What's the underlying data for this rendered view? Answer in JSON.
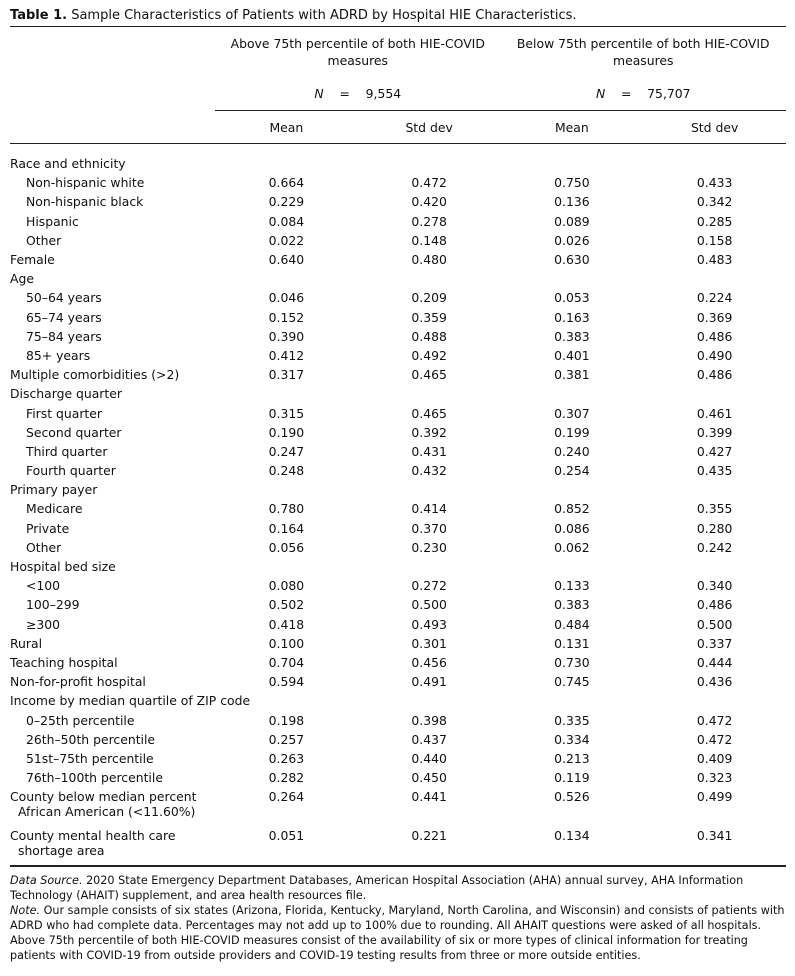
{
  "title": {
    "label": "Table 1.",
    "text": "Sample Characteristics of Patients with ADRD by Hospital HIE Characteristics."
  },
  "groups": [
    {
      "name": "Above 75th percentile of both HIE-COVID measures",
      "n_label": "N",
      "n_eq": "=",
      "n_value": "9,554"
    },
    {
      "name": "Below 75th percentile of both HIE-COVID measures",
      "n_label": "N",
      "n_eq": "=",
      "n_value": "75,707"
    }
  ],
  "columns": [
    "Mean",
    "Std dev",
    "Mean",
    "Std dev"
  ],
  "rows": [
    {
      "label": "Race and ethnicity",
      "indent": false,
      "values": [
        "",
        "",
        "",
        ""
      ]
    },
    {
      "label": "Non-hispanic white",
      "indent": true,
      "values": [
        "0.664",
        "0.472",
        "0.750",
        "0.433"
      ]
    },
    {
      "label": "Non-hispanic black",
      "indent": true,
      "values": [
        "0.229",
        "0.420",
        "0.136",
        "0.342"
      ]
    },
    {
      "label": "Hispanic",
      "indent": true,
      "values": [
        "0.084",
        "0.278",
        "0.089",
        "0.285"
      ]
    },
    {
      "label": "Other",
      "indent": true,
      "values": [
        "0.022",
        "0.148",
        "0.026",
        "0.158"
      ]
    },
    {
      "label": "Female",
      "indent": false,
      "values": [
        "0.640",
        "0.480",
        "0.630",
        "0.483"
      ]
    },
    {
      "label": "Age",
      "indent": false,
      "values": [
        "",
        "",
        "",
        ""
      ]
    },
    {
      "label": "50–64 years",
      "indent": true,
      "values": [
        "0.046",
        "0.209",
        "0.053",
        "0.224"
      ]
    },
    {
      "label": "65–74 years",
      "indent": true,
      "values": [
        "0.152",
        "0.359",
        "0.163",
        "0.369"
      ]
    },
    {
      "label": "75–84 years",
      "indent": true,
      "values": [
        "0.390",
        "0.488",
        "0.383",
        "0.486"
      ]
    },
    {
      "label": "85+ years",
      "indent": true,
      "values": [
        "0.412",
        "0.492",
        "0.401",
        "0.490"
      ]
    },
    {
      "label": "Multiple comorbidities (>2)",
      "indent": false,
      "values": [
        "0.317",
        "0.465",
        "0.381",
        "0.486"
      ]
    },
    {
      "label": "Discharge quarter",
      "indent": false,
      "values": [
        "",
        "",
        "",
        ""
      ]
    },
    {
      "label": "First quarter",
      "indent": true,
      "values": [
        "0.315",
        "0.465",
        "0.307",
        "0.461"
      ]
    },
    {
      "label": "Second quarter",
      "indent": true,
      "values": [
        "0.190",
        "0.392",
        "0.199",
        "0.399"
      ]
    },
    {
      "label": "Third quarter",
      "indent": true,
      "values": [
        "0.247",
        "0.431",
        "0.240",
        "0.427"
      ]
    },
    {
      "label": "Fourth quarter",
      "indent": true,
      "values": [
        "0.248",
        "0.432",
        "0.254",
        "0.435"
      ]
    },
    {
      "label": "Primary payer",
      "indent": false,
      "values": [
        "",
        "",
        "",
        ""
      ]
    },
    {
      "label": "Medicare",
      "indent": true,
      "values": [
        "0.780",
        "0.414",
        "0.852",
        "0.355"
      ]
    },
    {
      "label": "Private",
      "indent": true,
      "values": [
        "0.164",
        "0.370",
        "0.086",
        "0.280"
      ]
    },
    {
      "label": "Other",
      "indent": true,
      "values": [
        "0.056",
        "0.230",
        "0.062",
        "0.242"
      ]
    },
    {
      "label": "Hospital bed size",
      "indent": false,
      "values": [
        "",
        "",
        "",
        ""
      ]
    },
    {
      "label": "<100",
      "indent": true,
      "values": [
        "0.080",
        "0.272",
        "0.133",
        "0.340"
      ]
    },
    {
      "label": "100–299",
      "indent": true,
      "values": [
        "0.502",
        "0.500",
        "0.383",
        "0.486"
      ]
    },
    {
      "label": "≥300",
      "indent": true,
      "values": [
        "0.418",
        "0.493",
        "0.484",
        "0.500"
      ]
    },
    {
      "label": "Rural",
      "indent": false,
      "values": [
        "0.100",
        "0.301",
        "0.131",
        "0.337"
      ]
    },
    {
      "label": "Teaching hospital",
      "indent": false,
      "values": [
        "0.704",
        "0.456",
        "0.730",
        "0.444"
      ]
    },
    {
      "label": "Non-for-profit hospital",
      "indent": false,
      "values": [
        "0.594",
        "0.491",
        "0.745",
        "0.436"
      ]
    },
    {
      "label": "Income by median quartile of ZIP code",
      "indent": false,
      "values": [
        "",
        "",
        "",
        ""
      ]
    },
    {
      "label": "0–25th percentile",
      "indent": true,
      "values": [
        "0.198",
        "0.398",
        "0.335",
        "0.472"
      ]
    },
    {
      "label": "26th–50th percentile",
      "indent": true,
      "values": [
        "0.257",
        "0.437",
        "0.334",
        "0.472"
      ]
    },
    {
      "label": "51st–75th percentile",
      "indent": true,
      "values": [
        "0.263",
        "0.440",
        "0.213",
        "0.409"
      ]
    },
    {
      "label": "76th–100th percentile",
      "indent": true,
      "values": [
        "0.282",
        "0.450",
        "0.119",
        "0.323"
      ]
    },
    {
      "label": "County below median percent",
      "label2": "African American (<11.60%)",
      "indent": false,
      "values": [
        "0.264",
        "0.441",
        "0.526",
        "0.499"
      ]
    },
    {
      "label": "County mental health care",
      "label2": "shortage area",
      "indent": false,
      "values": [
        "0.051",
        "0.221",
        "0.134",
        "0.341"
      ]
    }
  ],
  "notes": {
    "source_label": "Data Source.",
    "source_text": "2020 State Emergency Department Databases, American Hospital Association (AHA) annual survey, AHA Information Technology (AHAIT) supplement, and area health resources file.",
    "note_label": "Note.",
    "note_text": "Our sample consists of six states (Arizona, Florida, Kentucky, Maryland, North Carolina, and Wisconsin) and consists of patients with ADRD who had complete data. Percentages may not add up to 100% due to rounding. All AHAIT questions were asked of all hospitals. Above 75th percentile of both HIE-COVID measures consist of the availability of six or more types of clinical information for treating patients with COVID-19 from outside providers and COVID-19 testing results from three or more outside entities."
  }
}
